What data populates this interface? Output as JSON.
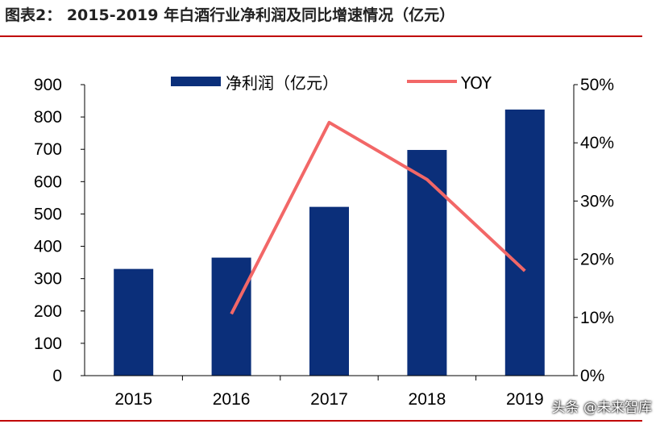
{
  "header": {
    "title": "图表2： 2015-2019 年白酒行业净利润及同比增速情况（亿元）"
  },
  "watermark": "头条 @未来智库",
  "colors": {
    "bar": "#0b2f7a",
    "line": "#f26767",
    "rule": "#c00000"
  },
  "chart_data": {
    "type": "bar",
    "categories": [
      "2015",
      "2016",
      "2017",
      "2018",
      "2019"
    ],
    "series": [
      {
        "name": "净利润（亿元）",
        "type": "bar",
        "axis": "left",
        "values": [
          330,
          365,
          522,
          698,
          823
        ]
      },
      {
        "name": "YOY",
        "type": "line",
        "axis": "right",
        "values": [
          null,
          10.6,
          43.5,
          33.7,
          18.0
        ]
      }
    ],
    "y_left": {
      "min": 0,
      "max": 900,
      "ticks": [
        "0",
        "100",
        "200",
        "300",
        "400",
        "500",
        "600",
        "700",
        "800",
        "900"
      ]
    },
    "y_right": {
      "min": 0,
      "max": 50,
      "ticks": [
        "0%",
        "10%",
        "20%",
        "30%",
        "40%",
        "50%"
      ]
    },
    "legend": {
      "position": "top"
    },
    "grid": false
  }
}
